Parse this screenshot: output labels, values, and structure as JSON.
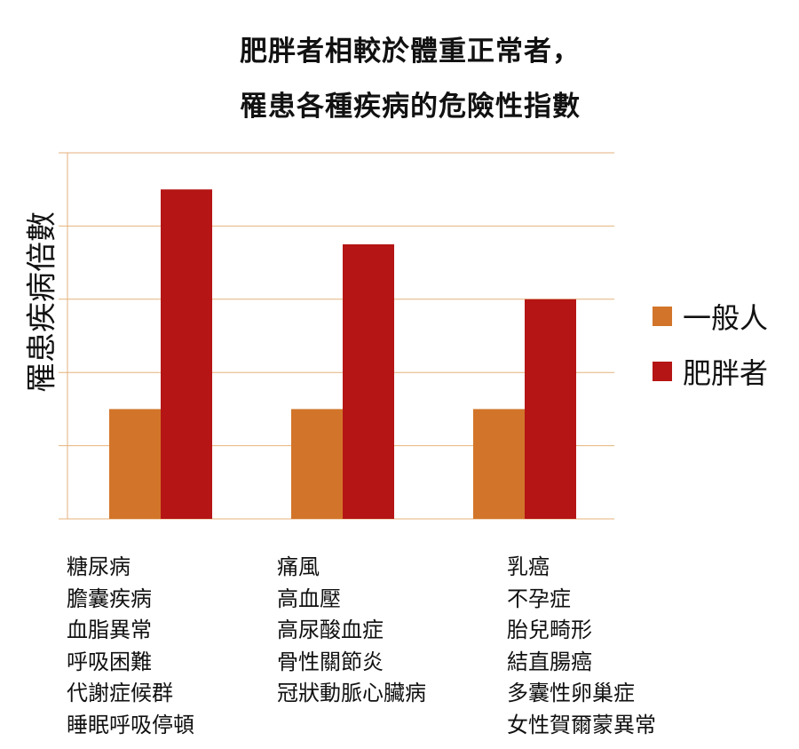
{
  "chart_data": {
    "type": "bar",
    "title_line1": "肥胖者相較於體重正常者，",
    "title_line2": "罹患各種疾病的危險性指數",
    "ylabel": "罹患疾病倍數",
    "xlabel": "",
    "ylim": [
      0,
      5
    ],
    "grid": true,
    "legend_position": "right",
    "categories": [
      [
        "糖尿病",
        "膽囊疾病",
        "血脂異常",
        "呼吸困難",
        "代謝症候群",
        "睡眠呼吸停頓"
      ],
      [
        "痛風",
        "高血壓",
        "高尿酸血症",
        "骨性關節炎",
        "冠狀動脈心臟病"
      ],
      [
        "乳癌",
        "不孕症",
        "胎兒畸形",
        "結直腸癌",
        "多囊性卵巢症",
        "女性賀爾蒙異常"
      ]
    ],
    "series": [
      {
        "name": "一般人",
        "color": "#d2752a",
        "values": [
          1.5,
          1.5,
          1.5
        ]
      },
      {
        "name": "肥胖者",
        "color": "#b51515",
        "values": [
          4.5,
          3.75,
          3.0
        ]
      }
    ]
  }
}
